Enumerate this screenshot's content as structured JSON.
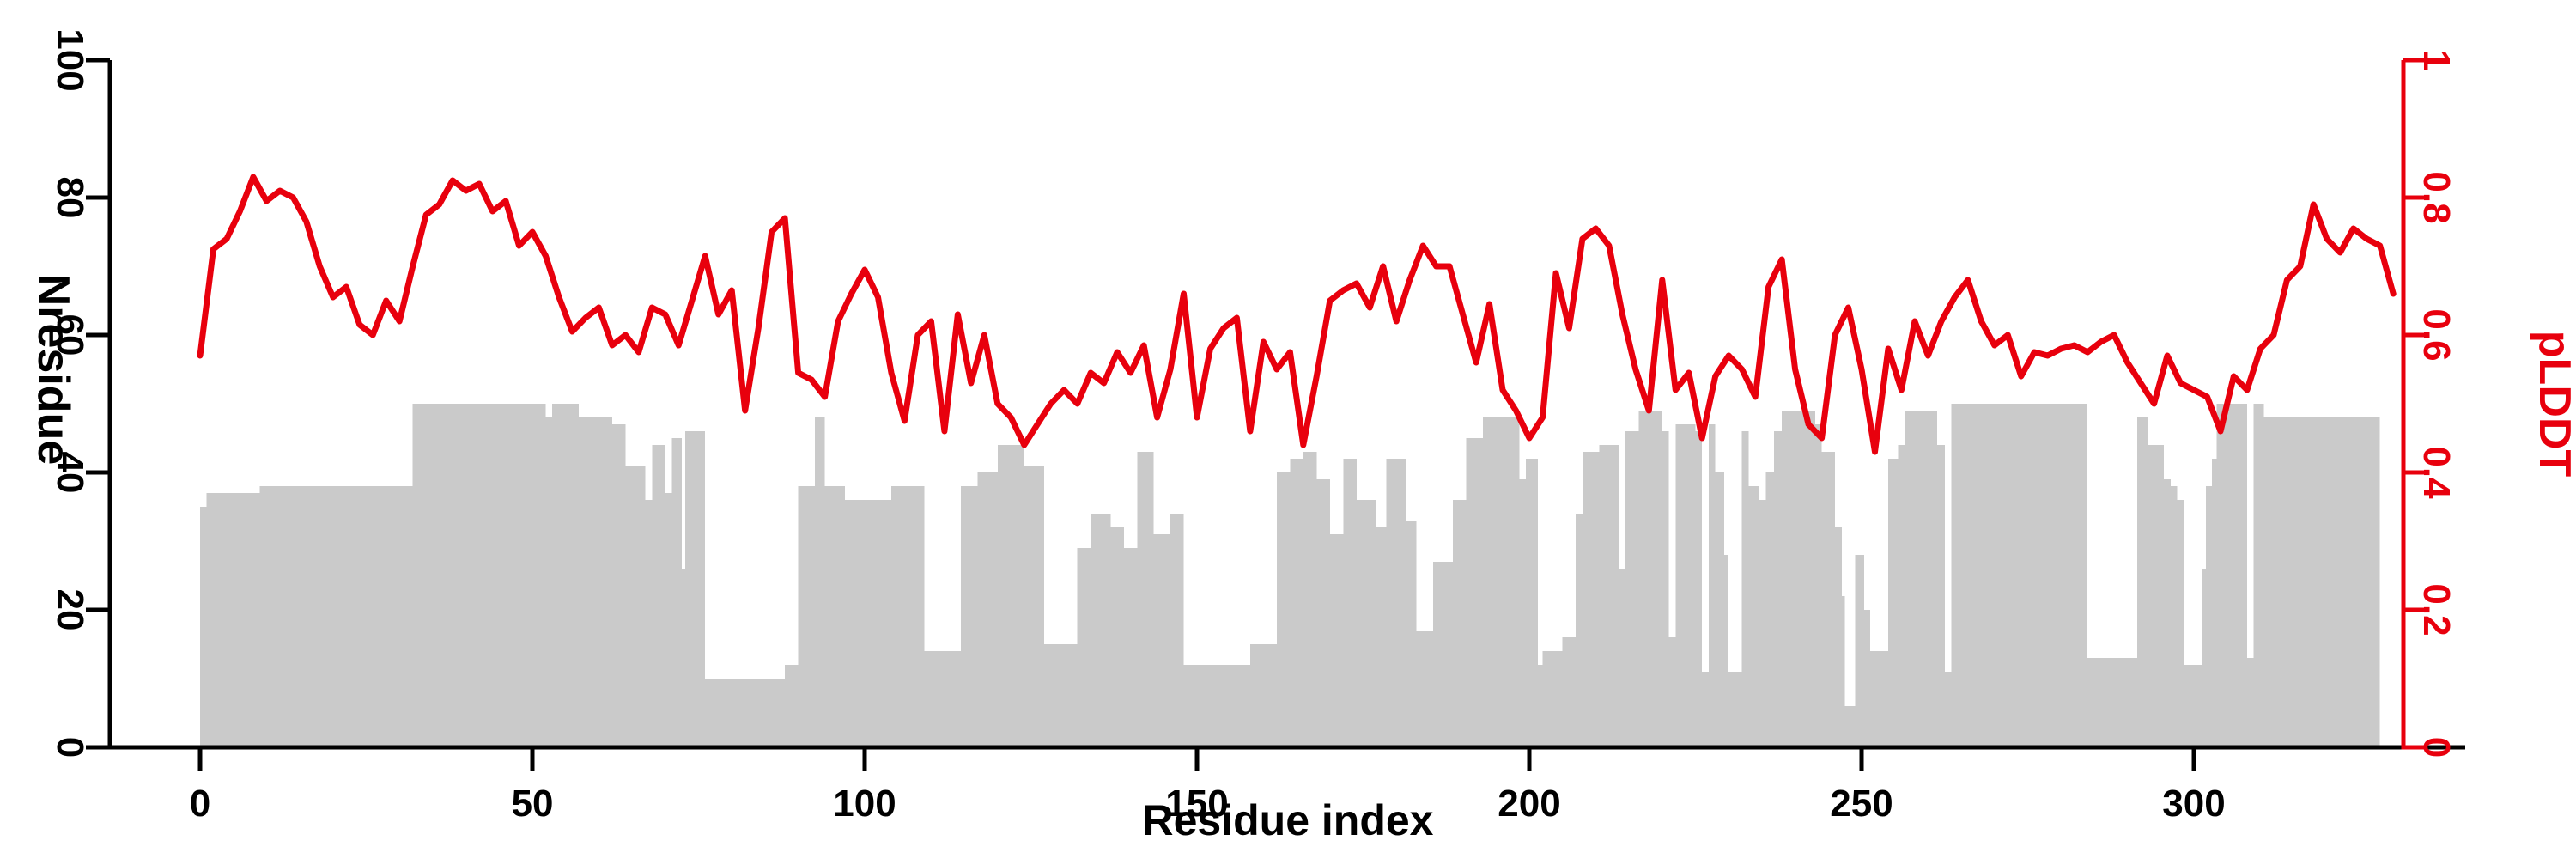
{
  "chart_data": {
    "type": "dual-axis-bar-line",
    "title": "",
    "xlabel": "Residue index",
    "ylabel_left": "Nresidue",
    "ylabel_right": "pLDDT",
    "xlim": [
      0,
      330
    ],
    "ylim_left": [
      0,
      100
    ],
    "ylim_right": [
      0,
      1
    ],
    "x_ticks": [
      0,
      50,
      100,
      150,
      200,
      250,
      300
    ],
    "x_tick_labels": [
      "0",
      "50",
      "100",
      "150",
      "200",
      "250",
      "300"
    ],
    "y_ticks_left": [
      0,
      20,
      40,
      60,
      80,
      100
    ],
    "y_tick_labels_left": [
      "0",
      "20",
      "40",
      "60",
      "80",
      "100"
    ],
    "y_ticks_right": [
      0,
      0.2,
      0.4,
      0.6,
      0.8,
      1
    ],
    "y_tick_labels_right": [
      "0",
      "0.2",
      "0.4",
      "0.6",
      "0.8",
      "1"
    ],
    "grid": false,
    "legend": "none",
    "colors": {
      "bar": "#cacaca",
      "line": "#e8000d",
      "axis": "#000000"
    },
    "bar_series": {
      "name": "Nresidue",
      "segments": [
        [
          0,
          1,
          35
        ],
        [
          1,
          9,
          37
        ],
        [
          9,
          32,
          38
        ],
        [
          32,
          52,
          50
        ],
        [
          52,
          53,
          48
        ],
        [
          53,
          57,
          50
        ],
        [
          57,
          62,
          48
        ],
        [
          62,
          64,
          47
        ],
        [
          64,
          67,
          41
        ],
        [
          67,
          68,
          36
        ],
        [
          68,
          70,
          44
        ],
        [
          70,
          71,
          37
        ],
        [
          71,
          72.5,
          45
        ],
        [
          72.5,
          73,
          26
        ],
        [
          73,
          76,
          46
        ],
        [
          76,
          88,
          10
        ],
        [
          88,
          90,
          12
        ],
        [
          90,
          92.5,
          38
        ],
        [
          92.5,
          94,
          48
        ],
        [
          94,
          97,
          38
        ],
        [
          97,
          104,
          36
        ],
        [
          104,
          109,
          38
        ],
        [
          109,
          114.5,
          14
        ],
        [
          114.5,
          117,
          38
        ],
        [
          117,
          120,
          40
        ],
        [
          120,
          124,
          44
        ],
        [
          124,
          127,
          41
        ],
        [
          127,
          132,
          15
        ],
        [
          132,
          134,
          29
        ],
        [
          134,
          137,
          34
        ],
        [
          137,
          139,
          32
        ],
        [
          139,
          141,
          29
        ],
        [
          141,
          143.5,
          43
        ],
        [
          143.5,
          146,
          31
        ],
        [
          146,
          148,
          34
        ],
        [
          148,
          158,
          12
        ],
        [
          158,
          162,
          15
        ],
        [
          162,
          164,
          40
        ],
        [
          164,
          166,
          42
        ],
        [
          166,
          168,
          43
        ],
        [
          168,
          170,
          39
        ],
        [
          170,
          172,
          31
        ],
        [
          172,
          174,
          42
        ],
        [
          174,
          177,
          36
        ],
        [
          177,
          178.5,
          32
        ],
        [
          178.5,
          181.5,
          42
        ],
        [
          181.5,
          183,
          33
        ],
        [
          183,
          185.5,
          17
        ],
        [
          185.5,
          188.5,
          27
        ],
        [
          188.5,
          190.5,
          36
        ],
        [
          190.5,
          193,
          45
        ],
        [
          193,
          198.5,
          48
        ],
        [
          198.5,
          199.5,
          39
        ],
        [
          199.5,
          201.3,
          42
        ],
        [
          201.3,
          202,
          12
        ],
        [
          202,
          205,
          14
        ],
        [
          205,
          207,
          16
        ],
        [
          207,
          208,
          34
        ],
        [
          208,
          210.5,
          43
        ],
        [
          210.5,
          213.5,
          44
        ],
        [
          213.5,
          214.5,
          26
        ],
        [
          214.5,
          216.5,
          46
        ],
        [
          216.5,
          220,
          49
        ],
        [
          220,
          221,
          46
        ],
        [
          221,
          222,
          16
        ],
        [
          222,
          225,
          47
        ],
        [
          225,
          226,
          46
        ],
        [
          226,
          227,
          11
        ],
        [
          227,
          228,
          47
        ],
        [
          228,
          229.3,
          40
        ],
        [
          229.3,
          230,
          28
        ],
        [
          230,
          232,
          11
        ],
        [
          232,
          233,
          46
        ],
        [
          233,
          234.5,
          38
        ],
        [
          234.5,
          235.6,
          36
        ],
        [
          235.6,
          236.8,
          40
        ],
        [
          236.8,
          238,
          46
        ],
        [
          238,
          243,
          49
        ],
        [
          243,
          244,
          47
        ],
        [
          244,
          246,
          43
        ],
        [
          246,
          247,
          32
        ],
        [
          247,
          247.5,
          22
        ],
        [
          247.5,
          249,
          6
        ],
        [
          249,
          250.4,
          28
        ],
        [
          250.4,
          251.3,
          20
        ],
        [
          251.3,
          254,
          14
        ],
        [
          254,
          255.5,
          42
        ],
        [
          255.5,
          256.6,
          44
        ],
        [
          256.6,
          261.4,
          49
        ],
        [
          261.4,
          262.5,
          44
        ],
        [
          262.5,
          263.5,
          11
        ],
        [
          263.5,
          284,
          50
        ],
        [
          284,
          291.5,
          13
        ],
        [
          291.5,
          293,
          48
        ],
        [
          293,
          295.5,
          44
        ],
        [
          295.5,
          296.5,
          39
        ],
        [
          296.5,
          297.5,
          38
        ],
        [
          297.5,
          298.5,
          36
        ],
        [
          298.5,
          301.3,
          12
        ],
        [
          301.3,
          301.8,
          26
        ],
        [
          301.8,
          302.7,
          38
        ],
        [
          302.7,
          303.4,
          42
        ],
        [
          303.4,
          308,
          50
        ],
        [
          308,
          309,
          13
        ],
        [
          309,
          310.5,
          50
        ],
        [
          310.5,
          328,
          48
        ]
      ]
    },
    "line_series": {
      "name": "pLDDT",
      "x_start": 0,
      "x_step": 2,
      "values": [
        0.57,
        0.725,
        0.74,
        0.78,
        0.83,
        0.795,
        0.81,
        0.8,
        0.765,
        0.7,
        0.655,
        0.67,
        0.615,
        0.6,
        0.65,
        0.62,
        0.7,
        0.775,
        0.79,
        0.825,
        0.81,
        0.82,
        0.78,
        0.795,
        0.73,
        0.75,
        0.715,
        0.655,
        0.605,
        0.625,
        0.64,
        0.585,
        0.6,
        0.575,
        0.64,
        0.63,
        0.585,
        0.65,
        0.715,
        0.63,
        0.665,
        0.49,
        0.61,
        0.75,
        0.77,
        0.545,
        0.535,
        0.51,
        0.62,
        0.66,
        0.695,
        0.655,
        0.545,
        0.475,
        0.6,
        0.62,
        0.46,
        0.63,
        0.53,
        0.6,
        0.5,
        0.48,
        0.44,
        0.47,
        0.5,
        0.52,
        0.5,
        0.545,
        0.53,
        0.575,
        0.545,
        0.585,
        0.48,
        0.55,
        0.66,
        0.48,
        0.58,
        0.61,
        0.625,
        0.46,
        0.59,
        0.55,
        0.575,
        0.44,
        0.54,
        0.65,
        0.665,
        0.675,
        0.64,
        0.7,
        0.62,
        0.68,
        0.73,
        0.7,
        0.7,
        0.63,
        0.56,
        0.645,
        0.52,
        0.49,
        0.45,
        0.48,
        0.69,
        0.61,
        0.74,
        0.755,
        0.73,
        0.63,
        0.55,
        0.49,
        0.68,
        0.52,
        0.545,
        0.45,
        0.54,
        0.57,
        0.55,
        0.51,
        0.67,
        0.71,
        0.55,
        0.47,
        0.45,
        0.6,
        0.64,
        0.55,
        0.43,
        0.58,
        0.52,
        0.62,
        0.57,
        0.62,
        0.655,
        0.68,
        0.62,
        0.585,
        0.6,
        0.54,
        0.575,
        0.57,
        0.58,
        0.585,
        0.575,
        0.59,
        0.6,
        0.56,
        0.53,
        0.5,
        0.57,
        0.53,
        0.52,
        0.51,
        0.46,
        0.54,
        0.52,
        0.58,
        0.6,
        0.68,
        0.7,
        0.79,
        0.74,
        0.72,
        0.755,
        0.74,
        0.73,
        0.66
      ]
    }
  }
}
